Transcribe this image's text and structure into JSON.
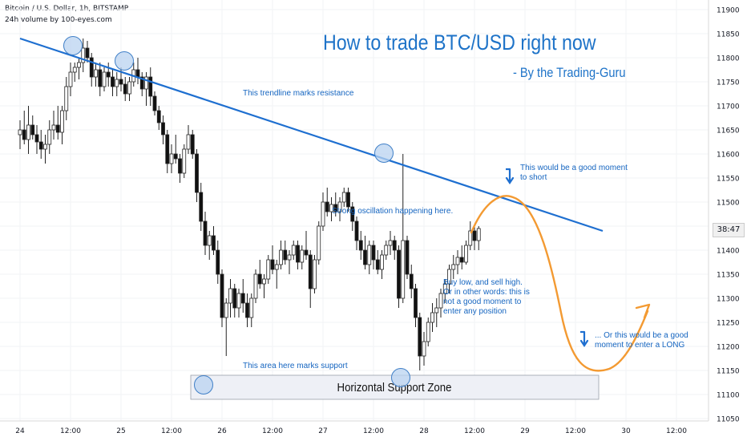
{
  "header": {
    "symbol_line": "Bitcoin / U.S. Dollar, 1h, BITSTAMP",
    "volume_line": "24h volume by 100-eyes.com"
  },
  "price_tag": "38:47",
  "colors": {
    "up": "#222222",
    "down": "#111111",
    "trend": "#1e6fd0",
    "annotation_text": "#1565c0",
    "title": "#1e73c8",
    "forecast": "#f39a32",
    "circle_fill": "#b9d3f0",
    "circle_stroke": "#3f7fc7",
    "zone_fill": "#eef0f6"
  },
  "chart_data": {
    "type": "candlestick",
    "title": "How to trade BTC/USD right now",
    "subtitle": "- By the Trading-Guru",
    "y_ticks": [
      11900,
      11850,
      11800,
      11750,
      11700,
      11650,
      11600,
      11550,
      11500,
      11450,
      11400,
      11350,
      11300,
      11250,
      11200,
      11150,
      11100,
      11050
    ],
    "x_ticks": [
      {
        "label": "24",
        "t": 0
      },
      {
        "label": "12:00",
        "t": 12
      },
      {
        "label": "25",
        "t": 24
      },
      {
        "label": "12:00",
        "t": 36
      },
      {
        "label": "26",
        "t": 48
      },
      {
        "label": "12:00",
        "t": 60
      },
      {
        "label": "27",
        "t": 72
      },
      {
        "label": "12:00",
        "t": 84
      },
      {
        "label": "28",
        "t": 96
      },
      {
        "label": "12:00",
        "t": 108
      },
      {
        "label": "29",
        "t": 120
      },
      {
        "label": "12:00",
        "t": 132
      },
      {
        "label": "30",
        "t": 144
      },
      {
        "label": "12:00",
        "t": 156
      }
    ],
    "ylim": [
      11030,
      11920
    ],
    "xlim": [
      -0.5,
      162
    ],
    "candles": [
      [
        11640,
        11670,
        11610,
        11650
      ],
      [
        11650,
        11690,
        11620,
        11630
      ],
      [
        11630,
        11700,
        11600,
        11660
      ],
      [
        11660,
        11680,
        11630,
        11640
      ],
      [
        11640,
        11660,
        11600,
        11625
      ],
      [
        11625,
        11650,
        11590,
        11610
      ],
      [
        11610,
        11640,
        11580,
        11620
      ],
      [
        11620,
        11670,
        11600,
        11650
      ],
      [
        11650,
        11690,
        11630,
        11660
      ],
      [
        11660,
        11700,
        11630,
        11645
      ],
      [
        11645,
        11700,
        11620,
        11690
      ],
      [
        11690,
        11760,
        11670,
        11740
      ],
      [
        11740,
        11790,
        11720,
        11770
      ],
      [
        11770,
        11790,
        11750,
        11780
      ],
      [
        11780,
        11800,
        11755,
        11790
      ],
      [
        11790,
        11840,
        11770,
        11820
      ],
      [
        11820,
        11835,
        11790,
        11800
      ],
      [
        11800,
        11810,
        11740,
        11760
      ],
      [
        11760,
        11790,
        11740,
        11775
      ],
      [
        11775,
        11790,
        11720,
        11740
      ],
      [
        11740,
        11780,
        11730,
        11770
      ],
      [
        11770,
        11790,
        11740,
        11760
      ],
      [
        11760,
        11775,
        11720,
        11740
      ],
      [
        11740,
        11770,
        11720,
        11755
      ],
      [
        11755,
        11780,
        11730,
        11745
      ],
      [
        11745,
        11760,
        11710,
        11725
      ],
      [
        11725,
        11760,
        11710,
        11750
      ],
      [
        11750,
        11790,
        11740,
        11775
      ],
      [
        11775,
        11800,
        11745,
        11760
      ],
      [
        11760,
        11770,
        11720,
        11735
      ],
      [
        11735,
        11770,
        11700,
        11760
      ],
      [
        11760,
        11780,
        11700,
        11720
      ],
      [
        11720,
        11730,
        11680,
        11690
      ],
      [
        11690,
        11700,
        11650,
        11665
      ],
      [
        11665,
        11680,
        11620,
        11640
      ],
      [
        11640,
        11650,
        11560,
        11580
      ],
      [
        11580,
        11620,
        11560,
        11600
      ],
      [
        11600,
        11640,
        11580,
        11590
      ],
      [
        11590,
        11600,
        11540,
        11560
      ],
      [
        11560,
        11620,
        11550,
        11610
      ],
      [
        11610,
        11660,
        11600,
        11640
      ],
      [
        11640,
        11650,
        11590,
        11600
      ],
      [
        11600,
        11610,
        11500,
        11520
      ],
      [
        11520,
        11540,
        11440,
        11460
      ],
      [
        11460,
        11480,
        11390,
        11410
      ],
      [
        11410,
        11440,
        11380,
        11430
      ],
      [
        11430,
        11450,
        11390,
        11400
      ],
      [
        11400,
        11420,
        11330,
        11350
      ],
      [
        11350,
        11360,
        11240,
        11260
      ],
      [
        11260,
        11300,
        11180,
        11290
      ],
      [
        11290,
        11340,
        11260,
        11320
      ],
      [
        11320,
        11330,
        11260,
        11280
      ],
      [
        11280,
        11320,
        11260,
        11310
      ],
      [
        11310,
        11340,
        11270,
        11290
      ],
      [
        11290,
        11310,
        11240,
        11260
      ],
      [
        11260,
        11310,
        11240,
        11300
      ],
      [
        11300,
        11360,
        11290,
        11350
      ],
      [
        11350,
        11380,
        11320,
        11330
      ],
      [
        11330,
        11350,
        11300,
        11340
      ],
      [
        11340,
        11390,
        11330,
        11380
      ],
      [
        11380,
        11410,
        11350,
        11360
      ],
      [
        11360,
        11380,
        11320,
        11370
      ],
      [
        11370,
        11420,
        11360,
        11400
      ],
      [
        11400,
        11420,
        11370,
        11380
      ],
      [
        11380,
        11400,
        11350,
        11390
      ],
      [
        11390,
        11420,
        11380,
        11410
      ],
      [
        11410,
        11420,
        11360,
        11375
      ],
      [
        11375,
        11410,
        11360,
        11400
      ],
      [
        11400,
        11440,
        11380,
        11390
      ],
      [
        11390,
        11400,
        11280,
        11320
      ],
      [
        11320,
        11390,
        11310,
        11380
      ],
      [
        11380,
        11460,
        11370,
        11450
      ],
      [
        11450,
        11520,
        11440,
        11500
      ],
      [
        11500,
        11530,
        11470,
        11480
      ],
      [
        11480,
        11510,
        11460,
        11495
      ],
      [
        11495,
        11520,
        11470,
        11480
      ],
      [
        11480,
        11510,
        11460,
        11500
      ],
      [
        11500,
        11530,
        11490,
        11520
      ],
      [
        11520,
        11530,
        11480,
        11490
      ],
      [
        11490,
        11500,
        11440,
        11460
      ],
      [
        11460,
        11470,
        11400,
        11420
      ],
      [
        11420,
        11440,
        11380,
        11400
      ],
      [
        11400,
        11430,
        11360,
        11370
      ],
      [
        11370,
        11420,
        11350,
        11410
      ],
      [
        11410,
        11420,
        11360,
        11380
      ],
      [
        11380,
        11400,
        11350,
        11360
      ],
      [
        11360,
        11400,
        11340,
        11390
      ],
      [
        11390,
        11420,
        11380,
        11410
      ],
      [
        11410,
        11440,
        11390,
        11420
      ],
      [
        11420,
        11430,
        11380,
        11400
      ],
      [
        11400,
        11410,
        11280,
        11300
      ],
      [
        11300,
        11600,
        11290,
        11420
      ],
      [
        11420,
        11430,
        11340,
        11350
      ],
      [
        11350,
        11370,
        11300,
        11320
      ],
      [
        11320,
        11330,
        11240,
        11260
      ],
      [
        11260,
        11270,
        11150,
        11180
      ],
      [
        11180,
        11230,
        11160,
        11210
      ],
      [
        11210,
        11260,
        11200,
        11250
      ],
      [
        11250,
        11290,
        11230,
        11270
      ],
      [
        11270,
        11300,
        11240,
        11280
      ],
      [
        11280,
        11320,
        11260,
        11310
      ],
      [
        11310,
        11340,
        11290,
        11330
      ],
      [
        11330,
        11370,
        11310,
        11360
      ],
      [
        11360,
        11390,
        11340,
        11370
      ],
      [
        11370,
        11400,
        11350,
        11385
      ],
      [
        11385,
        11410,
        11360,
        11375
      ],
      [
        11375,
        11420,
        11370,
        11410
      ],
      [
        11410,
        11460,
        11400,
        11440
      ],
      [
        11440,
        11450,
        11400,
        11420
      ],
      [
        11420,
        11450,
        11400,
        11445
      ]
    ],
    "trendline": {
      "x": [
        0,
        112
      ],
      "y": [
        11840,
        11470
      ],
      "label": "This trendline marks resistance"
    },
    "support_zone": {
      "y": [
        11090,
        11140
      ],
      "x": [
        0,
        111
      ],
      "label": "Horizontal Support Zone",
      "note": "This area here marks support"
    },
    "annotations": [
      {
        "text": "This trendline marks resistance"
      },
      {
        "text": "Strong oscillation happening here."
      },
      {
        "text": "This would be a good moment to short"
      },
      {
        "text": "Buy low, and sell high. Or in other words: this is not a good moment to enter any position"
      },
      {
        "text": "... Or this would be a good moment to enter a LONG"
      },
      {
        "text": "This area here marks support"
      }
    ]
  }
}
